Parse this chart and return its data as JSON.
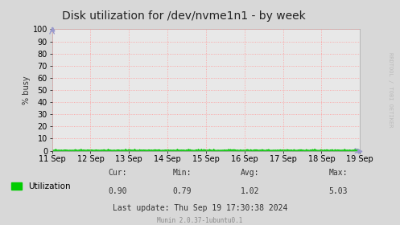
{
  "title": "Disk utilization for /dev/nvme1n1 - by week",
  "ylabel": "% busy",
  "background_color": "#d8d8d8",
  "plot_bg_color": "#e8e8e8",
  "grid_color": "#ff9999",
  "line_color": "#00cc00",
  "line_fill_color": "#00bb00",
  "ylim": [
    0,
    100
  ],
  "yticks": [
    0,
    10,
    20,
    30,
    40,
    50,
    60,
    70,
    80,
    90,
    100
  ],
  "x_labels": [
    "11 Sep",
    "12 Sep",
    "13 Sep",
    "14 Sep",
    "15 Sep",
    "16 Sep",
    "17 Sep",
    "18 Sep",
    "19 Sep"
  ],
  "legend_label": "Utilization",
  "cur_val": "0.90",
  "min_val": "0.79",
  "avg_val": "1.02",
  "max_val": "5.03",
  "last_update": "Last update: Thu Sep 19 17:30:38 2024",
  "munin_version": "Munin 2.0.37-1ubuntu0.1",
  "rrdtool_text": "RRDTOOL / TOBI OETIKER",
  "title_fontsize": 10,
  "axis_fontsize": 7,
  "legend_fontsize": 7.5,
  "stats_fontsize": 7,
  "arrow_color": "#9999cc"
}
